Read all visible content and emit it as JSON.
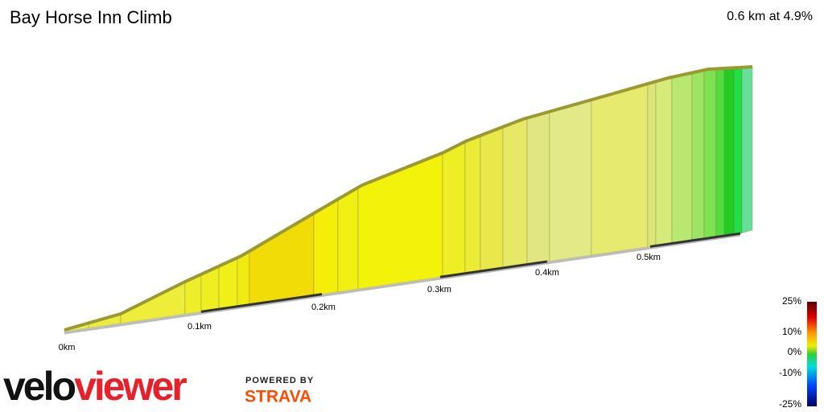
{
  "header": {
    "title": "Bay Horse Inn Climb",
    "summary": "0.6 km at 4.9%"
  },
  "distance_labels": [
    "0km",
    "0.1km",
    "0.2km",
    "0.3km",
    "0.4km",
    "0.5km"
  ],
  "gradient_legend": [
    "25%",
    "10%",
    "0%",
    "-10%",
    "-25%"
  ],
  "branding": {
    "logo_left": "velo",
    "logo_right": "viewer",
    "powered": "POWERED BY",
    "strava": "STRAVA"
  }
}
